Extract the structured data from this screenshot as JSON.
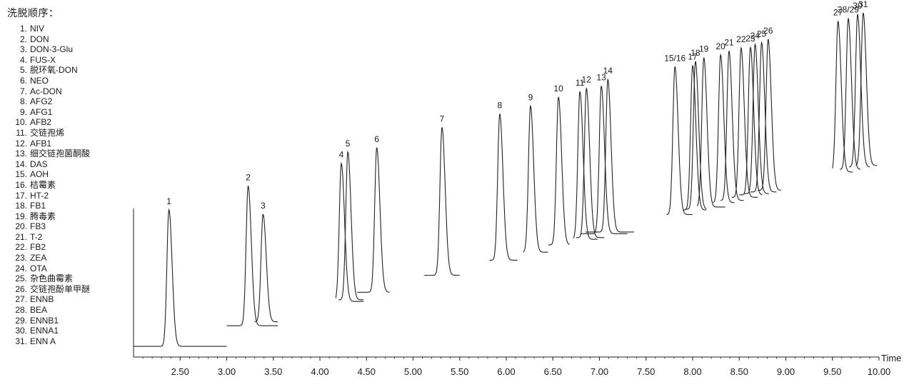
{
  "legend": {
    "title": "洗脱顺序：",
    "items": [
      {
        "num": "1.",
        "name": "NIV"
      },
      {
        "num": "2.",
        "name": "DON"
      },
      {
        "num": "3.",
        "name": "DON-3-Glu"
      },
      {
        "num": "4.",
        "name": "FUS-X"
      },
      {
        "num": "5.",
        "name": "脱环氧-DON"
      },
      {
        "num": "6.",
        "name": "NEO"
      },
      {
        "num": "7.",
        "name": "Ac-DON"
      },
      {
        "num": "8.",
        "name": "AFG2"
      },
      {
        "num": "9.",
        "name": "AFG1"
      },
      {
        "num": "10.",
        "name": "AFB2"
      },
      {
        "num": "11.",
        "name": "交链孢烯"
      },
      {
        "num": "12.",
        "name": "AFB1"
      },
      {
        "num": "13.",
        "name": "细交链孢菌酮酸"
      },
      {
        "num": "14.",
        "name": "DAS"
      },
      {
        "num": "15.",
        "name": "AOH"
      },
      {
        "num": "16.",
        "name": "桔霉素"
      },
      {
        "num": "17.",
        "name": "HT-2"
      },
      {
        "num": "18.",
        "name": "FB1"
      },
      {
        "num": "19.",
        "name": "腾毒素"
      },
      {
        "num": "20.",
        "name": "FB3"
      },
      {
        "num": "21.",
        "name": "T-2"
      },
      {
        "num": "22.",
        "name": "FB2"
      },
      {
        "num": "23.",
        "name": "ZEA"
      },
      {
        "num": "24.",
        "name": "OTA"
      },
      {
        "num": "25.",
        "name": "杂色曲霉素"
      },
      {
        "num": "26.",
        "name": "交链孢酚单甲醚"
      },
      {
        "num": "27.",
        "name": "ENNB"
      },
      {
        "num": "28.",
        "name": "BEA"
      },
      {
        "num": "29.",
        "name": "ENNB1"
      },
      {
        "num": "30.",
        "name": "ENNA1"
      },
      {
        "num": "31.",
        "name": "ENN A"
      }
    ]
  },
  "chart_data": {
    "type": "line",
    "title": "",
    "xlabel": "Time",
    "ylabel": "",
    "xlim": [
      2.0,
      10.0
    ],
    "xticks": [
      "2.50",
      "3.00",
      "3.50",
      "4.00",
      "4.50",
      "5.00",
      "5.50",
      "6.00",
      "6.50",
      "7.00",
      "7.50",
      "8.00",
      "8.50",
      "9.00",
      "9.50",
      "10.00"
    ],
    "grid": false,
    "legend_position": "left",
    "peak_labels": [
      {
        "label": "1",
        "rt": 2.38
      },
      {
        "label": "2",
        "rt": 3.23
      },
      {
        "label": "3",
        "rt": 3.39
      },
      {
        "label": "4",
        "rt": 4.23
      },
      {
        "label": "5",
        "rt": 4.3
      },
      {
        "label": "6",
        "rt": 4.61
      },
      {
        "label": "7",
        "rt": 5.31
      },
      {
        "label": "8",
        "rt": 5.93
      },
      {
        "label": "9",
        "rt": 6.26
      },
      {
        "label": "10",
        "rt": 6.56
      },
      {
        "label": "11",
        "rt": 6.79
      },
      {
        "label": "12",
        "rt": 6.86
      },
      {
        "label": "13",
        "rt": 7.02
      },
      {
        "label": "14",
        "rt": 7.09
      },
      {
        "label": "15/16",
        "rt": 7.81
      },
      {
        "label": "17",
        "rt": 8.0
      },
      {
        "label": "18",
        "rt": 8.03
      },
      {
        "label": "19",
        "rt": 8.12
      },
      {
        "label": "20",
        "rt": 8.3
      },
      {
        "label": "21",
        "rt": 8.39
      },
      {
        "label": "22",
        "rt": 8.52
      },
      {
        "label": "23",
        "rt": 8.62
      },
      {
        "label": "24",
        "rt": 8.67
      },
      {
        "label": "25",
        "rt": 8.74
      },
      {
        "label": "26",
        "rt": 8.81
      },
      {
        "label": "27",
        "rt": 9.56
      },
      {
        "label": "28/29",
        "rt": 9.67
      },
      {
        "label": "30",
        "rt": 9.77
      },
      {
        "label": "31",
        "rt": 9.83
      }
    ],
    "series": [
      {
        "rt": 2.38,
        "height": 0.85,
        "start": 2.0,
        "end": 3.0
      },
      {
        "rt": 3.23,
        "height": 0.87,
        "start": 3.0,
        "end": 3.55
      },
      {
        "rt": 3.39,
        "height": 0.67,
        "start": 3.3,
        "end": 3.55
      },
      {
        "rt": 4.23,
        "height": 0.86,
        "start": 4.17,
        "end": 4.47
      },
      {
        "rt": 4.3,
        "height": 0.92,
        "start": 4.2,
        "end": 4.47
      },
      {
        "rt": 4.61,
        "height": 0.9,
        "start": 4.4,
        "end": 4.75
      },
      {
        "rt": 5.31,
        "height": 0.92,
        "start": 5.12,
        "end": 5.5
      },
      {
        "rt": 5.93,
        "height": 0.91,
        "start": 5.82,
        "end": 6.12
      },
      {
        "rt": 6.26,
        "height": 0.91,
        "start": 6.18,
        "end": 6.45
      },
      {
        "rt": 6.56,
        "height": 0.92,
        "start": 6.45,
        "end": 6.68
      },
      {
        "rt": 6.79,
        "height": 0.92,
        "start": 6.72,
        "end": 6.98
      },
      {
        "rt": 6.86,
        "height": 0.93,
        "start": 6.75,
        "end": 7.05
      },
      {
        "rt": 7.02,
        "height": 0.92,
        "start": 6.8,
        "end": 7.3
      },
      {
        "rt": 7.09,
        "height": 0.95,
        "start": 6.85,
        "end": 7.37
      },
      {
        "rt": 7.81,
        "height": 0.92,
        "start": 7.72,
        "end": 8.0
      },
      {
        "rt": 8.0,
        "height": 0.9,
        "start": 7.9,
        "end": 8.15
      },
      {
        "rt": 8.03,
        "height": 0.92,
        "start": 7.92,
        "end": 8.15
      },
      {
        "rt": 8.12,
        "height": 0.93,
        "start": 8.05,
        "end": 8.35
      },
      {
        "rt": 8.3,
        "height": 0.92,
        "start": 8.22,
        "end": 8.45
      },
      {
        "rt": 8.39,
        "height": 0.93,
        "start": 8.3,
        "end": 8.55
      },
      {
        "rt": 8.52,
        "height": 0.93,
        "start": 8.42,
        "end": 8.7
      },
      {
        "rt": 8.62,
        "height": 0.92,
        "start": 8.5,
        "end": 8.75
      },
      {
        "rt": 8.67,
        "height": 0.93,
        "start": 8.55,
        "end": 8.82
      },
      {
        "rt": 8.74,
        "height": 0.93,
        "start": 8.62,
        "end": 8.9
      },
      {
        "rt": 8.81,
        "height": 0.94,
        "start": 8.7,
        "end": 8.95
      },
      {
        "rt": 9.56,
        "height": 0.94,
        "start": 9.5,
        "end": 9.72
      },
      {
        "rt": 9.67,
        "height": 0.94,
        "start": 9.58,
        "end": 9.8
      },
      {
        "rt": 9.77,
        "height": 0.95,
        "start": 9.68,
        "end": 9.9
      },
      {
        "rt": 9.83,
        "height": 0.95,
        "start": 9.75,
        "end": 9.98
      }
    ]
  }
}
